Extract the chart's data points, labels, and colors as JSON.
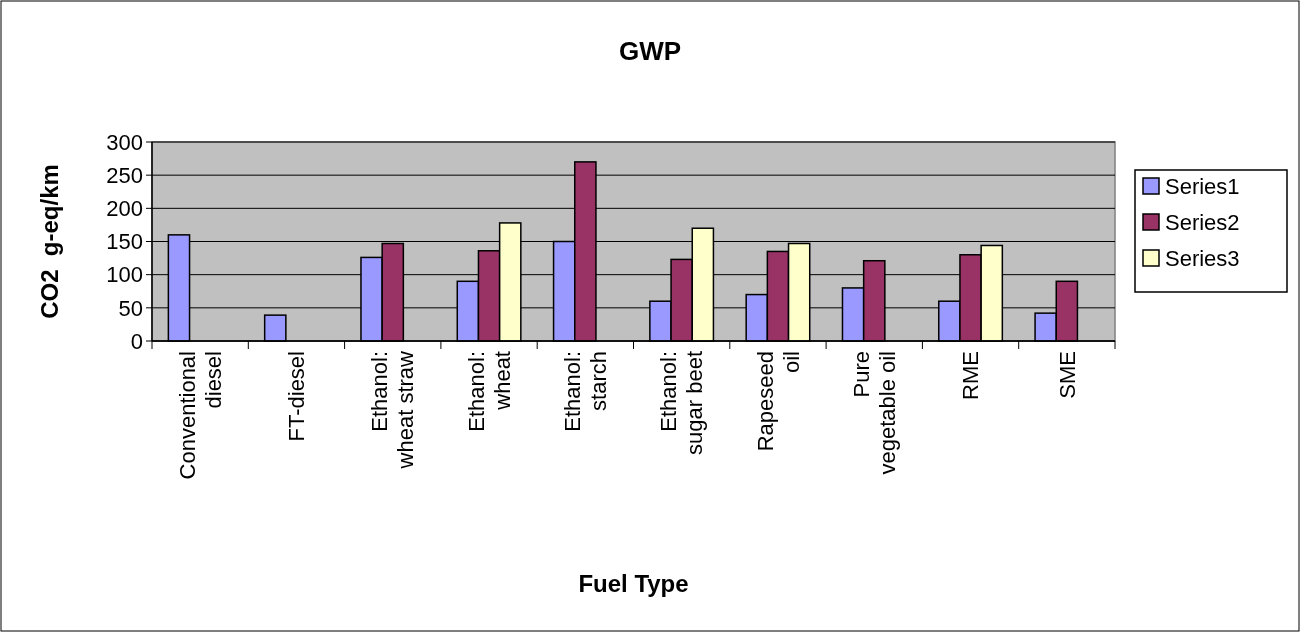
{
  "chart_data": {
    "type": "bar",
    "title": "GWP",
    "xlabel": "Fuel Type",
    "ylabel": "CO2  g-eq/km",
    "categories": [
      "Conventional diesel",
      "FT-diesel",
      "Ethanol: wheat straw",
      "Ethanol: wheat",
      "Ethanol: starch",
      "Ethanol: sugar beet",
      "Rapeseed oil",
      "Pure vegetable oil",
      "RME",
      "SME"
    ],
    "series": [
      {
        "name": "Series1",
        "color": "#9999ff",
        "values": [
          160,
          39,
          126,
          90,
          150,
          60,
          70,
          80,
          60,
          42
        ]
      },
      {
        "name": "Series2",
        "color": "#993366",
        "values": [
          null,
          null,
          147,
          136,
          270,
          123,
          135,
          121,
          130,
          90
        ]
      },
      {
        "name": "Series3",
        "color": "#ffffcc",
        "values": [
          null,
          null,
          null,
          178,
          null,
          170,
          147,
          null,
          144,
          null
        ]
      }
    ],
    "ylim": [
      0,
      300
    ],
    "yticks": [
      0,
      50,
      100,
      150,
      200,
      250,
      300
    ],
    "grid": "y",
    "legend": "right"
  }
}
